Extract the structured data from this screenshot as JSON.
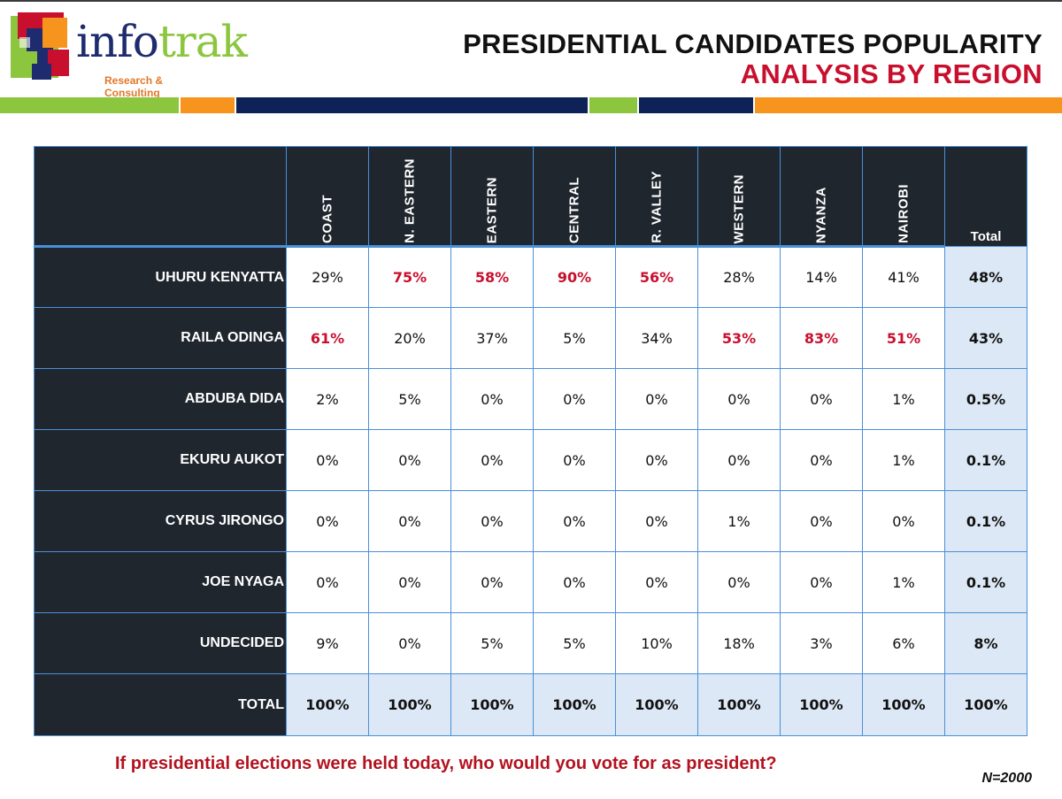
{
  "brand": {
    "name_part1": "info",
    "name_part2": "trak",
    "tagline": "Research & Consulting"
  },
  "title": {
    "line1": "PRESIDENTIAL CANDIDATES POPULARITY",
    "line2": "ANALYSIS BY REGION"
  },
  "colors": {
    "dark_header": "#1f262e",
    "highlight_red": "#c8102e",
    "grid_blue": "#4a90d9",
    "total_fill": "#dce8f5",
    "band_green": "#8cc63f",
    "band_orange": "#f7941d",
    "band_navy": "#0d2357"
  },
  "table": {
    "regions": [
      "COAST",
      "N. EASTERN",
      "EASTERN",
      "CENTRAL",
      "R. VALLEY",
      "WESTERN",
      "NYANZA",
      "NAIROBI"
    ],
    "total_header": "Total",
    "rows": [
      {
        "label": "UHURU KENYATTA",
        "values": [
          "29%",
          "75%",
          "58%",
          "90%",
          "56%",
          "28%",
          "14%",
          "41%"
        ],
        "highlight": [
          false,
          true,
          true,
          true,
          true,
          false,
          false,
          false
        ],
        "total": "48%"
      },
      {
        "label": "RAILA ODINGA",
        "values": [
          "61%",
          "20%",
          "37%",
          "5%",
          "34%",
          "53%",
          "83%",
          "51%"
        ],
        "highlight": [
          true,
          false,
          false,
          false,
          false,
          true,
          true,
          true
        ],
        "total": "43%"
      },
      {
        "label": "ABDUBA DIDA",
        "values": [
          "2%",
          "5%",
          "0%",
          "0%",
          "0%",
          "0%",
          "0%",
          "1%"
        ],
        "highlight": [
          false,
          false,
          false,
          false,
          false,
          false,
          false,
          false
        ],
        "total": "0.5%"
      },
      {
        "label": "EKURU AUKOT",
        "values": [
          "0%",
          "0%",
          "0%",
          "0%",
          "0%",
          "0%",
          "0%",
          "1%"
        ],
        "highlight": [
          false,
          false,
          false,
          false,
          false,
          false,
          false,
          false
        ],
        "total": "0.1%"
      },
      {
        "label": "CYRUS JIRONGO",
        "values": [
          "0%",
          "0%",
          "0%",
          "0%",
          "0%",
          "1%",
          "0%",
          "0%"
        ],
        "highlight": [
          false,
          false,
          false,
          false,
          false,
          false,
          false,
          false
        ],
        "total": "0.1%"
      },
      {
        "label": "JOE NYAGA",
        "values": [
          "0%",
          "0%",
          "0%",
          "0%",
          "0%",
          "0%",
          "0%",
          "1%"
        ],
        "highlight": [
          false,
          false,
          false,
          false,
          false,
          false,
          false,
          false
        ],
        "total": "0.1%"
      },
      {
        "label": "UNDECIDED",
        "values": [
          "9%",
          "0%",
          "5%",
          "5%",
          "10%",
          "18%",
          "3%",
          "6%"
        ],
        "highlight": [
          false,
          false,
          false,
          false,
          false,
          false,
          false,
          false
        ],
        "total": "8%"
      }
    ],
    "total_row": {
      "label": "TOTAL",
      "values": [
        "100%",
        "100%",
        "100%",
        "100%",
        "100%",
        "100%",
        "100%",
        "100%"
      ],
      "total": "100%"
    }
  },
  "footer": {
    "question": "If presidential elections were held today, who would you vote for as president?",
    "sample": "N=2000"
  }
}
